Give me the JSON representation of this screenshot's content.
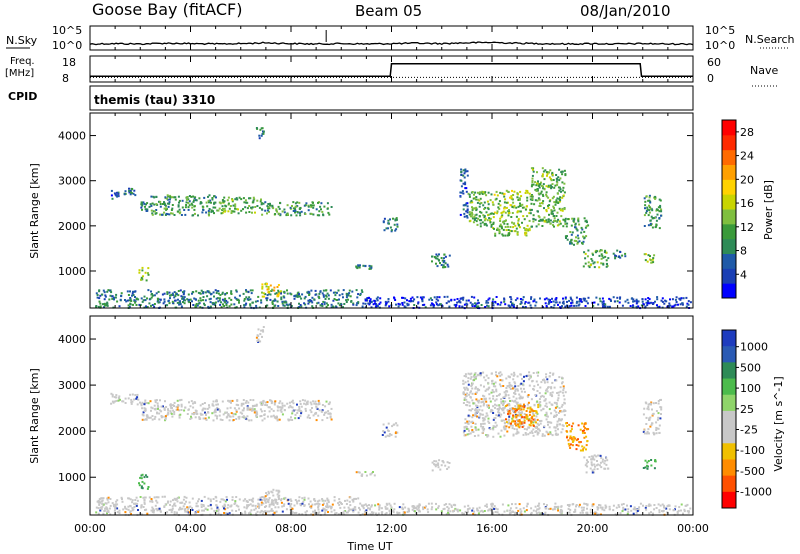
{
  "header": {
    "station": "Goose Bay (fitACF)",
    "beam": "Beam 05",
    "date": "08/Jan/2010"
  },
  "panel_labels": {
    "nsky": "N.Sky",
    "nsearch": "N.Search",
    "freq_line1": "Freq.",
    "freq_line2": "[MHz]",
    "nave": "Nave",
    "cpid": "CPID",
    "cpid_value": "themis (tau) 3310",
    "exp_top": "10^5",
    "exp_bot": "10^0"
  },
  "colors": {
    "nsky_line": "#000000",
    "power_scale": [
      "#0000ff",
      "#1a3fb4",
      "#1f5aa8",
      "#2e8b57",
      "#3a9a3a",
      "#7fbf3f",
      "#c8d400",
      "#ffd200",
      "#ffa000",
      "#ff6a00",
      "#ff2a00",
      "#ff0000"
    ],
    "velocity_scale": [
      "#1e3cbe",
      "#2a5ab4",
      "#2e8b57",
      "#4cbb4c",
      "#8fd46a",
      "#c8c8c8",
      "#c8c8c8",
      "#f0c000",
      "#ff8c00",
      "#ff5000",
      "#ff0000"
    ]
  },
  "chart_data": [
    {
      "type": "line",
      "name": "nsky-nsearch",
      "x": [
        0,
        1,
        2,
        3,
        4,
        5,
        6,
        7,
        8,
        9,
        10,
        11,
        12,
        13,
        14,
        15,
        16,
        17,
        18,
        19,
        20,
        21,
        22,
        23,
        24
      ],
      "series": [
        {
          "values": [
            3.5,
            3.6,
            3.5,
            3.7,
            3.6,
            3.5,
            3.6,
            3.8,
            3.6,
            3.5,
            3.6,
            3.5,
            3.6,
            3.7,
            3.6,
            3.8,
            3.9,
            3.7,
            3.6,
            3.5,
            3.6,
            3.5,
            3.6,
            3.5,
            3.5
          ]
        }
      ],
      "yticks_left": [
        "10^5",
        "10^0"
      ],
      "yticks_right": [
        "10^5",
        "10^0"
      ]
    },
    {
      "type": "line",
      "name": "frequency-nave",
      "yticks_left": [
        18,
        8
      ],
      "yticks_right": [
        60,
        0
      ],
      "series": [
        {
          "name": "Freq.",
          "x": [
            0,
            11.95,
            12.0,
            21.9,
            21.95,
            24
          ],
          "values": [
            10.2,
            10.2,
            15.0,
            15.0,
            10.2,
            10.2
          ]
        },
        {
          "name": "Nave",
          "x": [
            0,
            24
          ],
          "values": [
            9.8,
            9.8
          ]
        }
      ]
    },
    {
      "type": "heatmap",
      "name": "power",
      "xlabel": "",
      "ylabel": "Slant Range [km]",
      "xlim": [
        0,
        24
      ],
      "ylim": [
        180,
        4500
      ],
      "yticks": [
        1000,
        2000,
        3000,
        4000
      ],
      "colorbar_label": "Power [dB]",
      "colorbar_ticks": [
        4,
        8,
        12,
        16,
        20,
        24,
        28
      ],
      "colorbar_range": [
        0,
        30
      ],
      "regions": [
        {
          "t0": 0.8,
          "t1": 1.1,
          "r0": 2600,
          "r1": 2800,
          "v": 6
        },
        {
          "t0": 1.3,
          "t1": 1.9,
          "r0": 2700,
          "r1": 2850,
          "v": 8
        },
        {
          "t0": 2.0,
          "t1": 2.4,
          "r0": 2350,
          "r1": 2550,
          "v": 8
        },
        {
          "t0": 2.4,
          "t1": 5.0,
          "r0": 2250,
          "r1": 2700,
          "v": 10
        },
        {
          "t0": 5.0,
          "t1": 6.8,
          "r0": 2300,
          "r1": 2650,
          "v": 12
        },
        {
          "t0": 6.8,
          "t1": 9.6,
          "r0": 2250,
          "r1": 2550,
          "v": 10
        },
        {
          "t0": 6.6,
          "t1": 6.9,
          "r0": 3950,
          "r1": 4250,
          "v": 8
        },
        {
          "t0": 1.9,
          "t1": 2.3,
          "r0": 800,
          "r1": 1100,
          "v": 14
        },
        {
          "t0": 10.5,
          "t1": 11.3,
          "r0": 1050,
          "r1": 1150,
          "v": 8
        },
        {
          "t0": 11.6,
          "t1": 12.2,
          "r0": 1900,
          "r1": 2200,
          "v": 8
        },
        {
          "t0": 13.5,
          "t1": 14.3,
          "r0": 1100,
          "r1": 1400,
          "v": 8
        },
        {
          "t0": 14.7,
          "t1": 15.0,
          "r0": 2200,
          "r1": 3300,
          "v": 6
        },
        {
          "t0": 15.0,
          "t1": 16.0,
          "r0": 2000,
          "r1": 2800,
          "v": 12
        },
        {
          "t0": 16.0,
          "t1": 17.5,
          "r0": 1800,
          "r1": 2800,
          "v": 14
        },
        {
          "t0": 17.5,
          "t1": 18.9,
          "r0": 2000,
          "r1": 3300,
          "v": 12
        },
        {
          "t0": 18.9,
          "t1": 19.8,
          "r0": 1600,
          "r1": 2200,
          "v": 10
        },
        {
          "t0": 19.6,
          "t1": 20.6,
          "r0": 1100,
          "r1": 1500,
          "v": 12
        },
        {
          "t0": 20.8,
          "t1": 21.3,
          "r0": 1300,
          "r1": 1500,
          "v": 8
        },
        {
          "t0": 22.0,
          "t1": 22.7,
          "r0": 1950,
          "r1": 2700,
          "v": 10
        },
        {
          "t0": 22.0,
          "t1": 22.5,
          "r0": 1200,
          "r1": 1400,
          "v": 14
        },
        {
          "t0": 0.2,
          "t1": 10.8,
          "r0": 200,
          "r1": 600,
          "v": 8
        },
        {
          "t0": 10.8,
          "t1": 23.9,
          "r0": 200,
          "r1": 450,
          "v": 4
        },
        {
          "t0": 6.8,
          "t1": 7.6,
          "r0": 450,
          "r1": 750,
          "v": 18
        }
      ]
    },
    {
      "type": "heatmap",
      "name": "velocity",
      "xlabel": "Time UT",
      "ylabel": "Slant Range [km]",
      "xlim": [
        0,
        24
      ],
      "ylim": [
        180,
        4500
      ],
      "yticks": [
        1000,
        2000,
        3000,
        4000
      ],
      "xticks": [
        "00:00",
        "04:00",
        "08:00",
        "12:00",
        "16:00",
        "20:00",
        "00:00"
      ],
      "colorbar_label": "Velocity [m s^-1]",
      "colorbar_ticks": [
        "1000",
        "500",
        "100",
        "25",
        "-25",
        "-100",
        "-500",
        "-1000"
      ],
      "regions": [
        {
          "t0": 0.8,
          "t1": 2.0,
          "r0": 2600,
          "r1": 2850,
          "v": 0
        },
        {
          "t0": 2.0,
          "t1": 9.6,
          "r0": 2250,
          "r1": 2700,
          "v": 0
        },
        {
          "t0": 6.6,
          "t1": 6.9,
          "r0": 3950,
          "r1": 4350,
          "v": 0
        },
        {
          "t0": 1.9,
          "t1": 2.3,
          "r0": 750,
          "r1": 1100,
          "v": 150
        },
        {
          "t0": 10.5,
          "t1": 11.3,
          "r0": 1050,
          "r1": 1150,
          "v": 0
        },
        {
          "t0": 11.6,
          "t1": 12.2,
          "r0": 1900,
          "r1": 2200,
          "v": 0
        },
        {
          "t0": 13.5,
          "t1": 14.3,
          "r0": 1150,
          "r1": 1400,
          "v": 0
        },
        {
          "t0": 14.8,
          "t1": 18.9,
          "r0": 1900,
          "r1": 3300,
          "v": 0
        },
        {
          "t0": 16.5,
          "t1": 17.8,
          "r0": 2100,
          "r1": 2600,
          "v": -150
        },
        {
          "t0": 18.9,
          "t1": 19.8,
          "r0": 1600,
          "r1": 2200,
          "v": -150
        },
        {
          "t0": 19.6,
          "t1": 20.6,
          "r0": 1100,
          "r1": 1500,
          "v": 0
        },
        {
          "t0": 22.0,
          "t1": 22.7,
          "r0": 1950,
          "r1": 2700,
          "v": 0
        },
        {
          "t0": 22.0,
          "t1": 22.5,
          "r0": 1200,
          "r1": 1400,
          "v": 50
        },
        {
          "t0": 0.2,
          "t1": 10.8,
          "r0": 200,
          "r1": 600,
          "v": 0
        },
        {
          "t0": 10.8,
          "t1": 23.9,
          "r0": 200,
          "r1": 450,
          "v": 0
        },
        {
          "t0": 6.8,
          "t1": 7.6,
          "r0": 450,
          "r1": 750,
          "v": 0
        }
      ]
    }
  ]
}
